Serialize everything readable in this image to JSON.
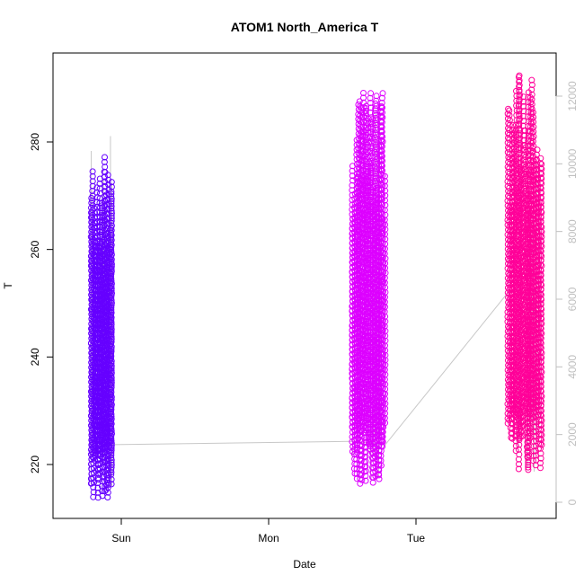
{
  "chart_data": {
    "type": "scatter",
    "title": "ATOM1 North_America T",
    "xlabel": "Date",
    "ylabel": "T",
    "x_ticks": [
      "Sun",
      "Mon",
      "Tue"
    ],
    "xlim_hours_note": "",
    "y_left": {
      "ylim": [
        212,
        292
      ],
      "ticks": [
        220,
        240,
        260,
        280
      ]
    },
    "y_right": {
      "ylim": [
        0,
        12500
      ],
      "ticks": [
        0,
        2000,
        4000,
        6000,
        8000,
        10000,
        12000
      ],
      "color": "#c0c0c0"
    },
    "background_line_color": "#c8c8c8",
    "clusters": [
      {
        "name": "",
        "color": "#6600ff",
        "time_start": "Sat 19:00",
        "time_end": "Sat 22:30",
        "sweeps": 26,
        "t_min": 213.5,
        "t_max": 278.0
      },
      {
        "name": "",
        "color": "#dd00ff",
        "time_start": "Mon 13:30",
        "time_end": "Mon 19:00",
        "sweeps": 32,
        "t_min": 216.0,
        "t_max": 291.0
      },
      {
        "name": "",
        "color": "#ff0099",
        "time_start": "Tue 15:00",
        "time_end": "Tue 20:30",
        "sweeps": 30,
        "t_min": 219.0,
        "t_max": 293.0
      }
    ],
    "background_trace": [
      {
        "time": "Sat 22:30",
        "value": 1700
      },
      {
        "time": "Mon 13:30",
        "value": 1800
      },
      {
        "time": "Mon 19:00",
        "value": 1700
      },
      {
        "time": "Tue 15:00",
        "value": 6200
      }
    ]
  }
}
